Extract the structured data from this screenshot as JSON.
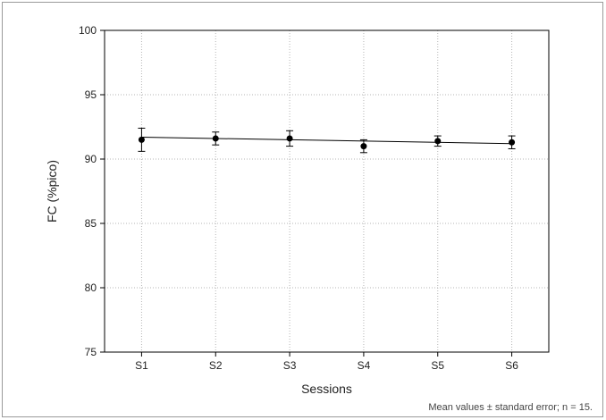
{
  "chart_data": {
    "type": "line",
    "title": "",
    "xlabel": "Sessions",
    "ylabel": "FC (%pico)",
    "categories": [
      "S1",
      "S2",
      "S3",
      "S4",
      "S5",
      "S6"
    ],
    "series": [
      {
        "values": [
          91.5,
          91.6,
          91.6,
          91.0,
          91.4,
          91.3
        ],
        "error": [
          0.9,
          0.5,
          0.6,
          0.5,
          0.4,
          0.5
        ]
      }
    ],
    "trend_line": {
      "start": 91.7,
      "end": 91.2
    },
    "ylim": [
      75,
      100
    ],
    "yticks": [
      75,
      80,
      85,
      90,
      95,
      100
    ],
    "grid": true,
    "footnote": "Mean values ± standard error; n = 15."
  }
}
